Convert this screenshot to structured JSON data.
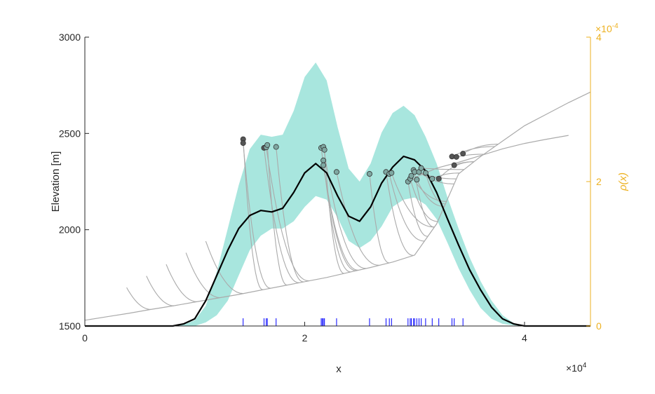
{
  "chart_data": {
    "type": "line",
    "title": "",
    "xlabel": "x",
    "ylabel_left": "Elevation [m]",
    "ylabel_right": "ρ(x)",
    "x_exponent_label": "×10",
    "x_exponent_power": "4",
    "right_exponent_label": "×10",
    "right_exponent_power": "-4",
    "xlim": [
      0,
      46000
    ],
    "ylim_left": [
      1500,
      3000
    ],
    "ylim_right": [
      0,
      0.0004
    ],
    "x_ticks": [
      {
        "v": 0,
        "label": "0"
      },
      {
        "v": 20000,
        "label": "2"
      },
      {
        "v": 40000,
        "label": "4"
      }
    ],
    "y_left_ticks": [
      {
        "v": 1500,
        "label": "1500"
      },
      {
        "v": 2000,
        "label": "2000"
      },
      {
        "v": 2500,
        "label": "2500"
      },
      {
        "v": 3000,
        "label": "3000"
      }
    ],
    "y_right_ticks": [
      {
        "v": 0,
        "label": "0"
      },
      {
        "v": 0.0002,
        "label": "2"
      },
      {
        "v": 0.0004,
        "label": "4"
      }
    ],
    "grid": false,
    "colors": {
      "axis_left": "#262626",
      "axis_right": "#EDB120",
      "band": "#A8E6DE",
      "density": "#000000",
      "streams": "#AAAAAA",
      "rug": "#0000FF",
      "points_light": "#7FA8A2",
      "points_dark": "#555555"
    },
    "density_curve": {
      "x": [
        0,
        8000,
        9000,
        10000,
        11000,
        12000,
        13000,
        14000,
        15000,
        16000,
        17000,
        18000,
        19000,
        20000,
        21000,
        22000,
        23000,
        24000,
        25000,
        26000,
        27000,
        28000,
        29000,
        30000,
        31000,
        32000,
        33000,
        34000,
        35000,
        36000,
        37000,
        38000,
        39000,
        40000,
        46000
      ],
      "y": [
        0,
        0,
        3e-06,
        1e-05,
        3.5e-05,
        7e-05,
        0.000105,
        0.000135,
        0.000153,
        0.00016,
        0.000158,
        0.000163,
        0.000185,
        0.000212,
        0.000225,
        0.000212,
        0.00018,
        0.000152,
        0.000145,
        0.000165,
        0.000198,
        0.00022,
        0.000235,
        0.00023,
        0.000215,
        0.000185,
        0.000148,
        0.000112,
        7.8e-05,
        5e-05,
        2.6e-05,
        1e-05,
        3e-06,
        0,
        0
      ]
    },
    "confidence_band": {
      "x": [
        8000,
        9000,
        10000,
        11000,
        12000,
        13000,
        14000,
        15000,
        16000,
        17000,
        18000,
        19000,
        20000,
        21000,
        22000,
        23000,
        24000,
        25000,
        26000,
        27000,
        28000,
        29000,
        30000,
        31000,
        32000,
        33000,
        34000,
        35000,
        36000,
        37000,
        38000,
        39000,
        40000
      ],
      "lower": [
        0,
        0,
        0,
        5e-06,
        1.5e-05,
        3.5e-05,
        7e-05,
        0.000105,
        0.000125,
        0.000135,
        0.000135,
        0.000145,
        0.000165,
        0.00018,
        0.000175,
        0.00015,
        0.000118,
        0.000108,
        0.000118,
        0.000138,
        0.000165,
        0.000175,
        0.000178,
        0.000168,
        0.000148,
        0.000115,
        8e-05,
        5e-05,
        2.5e-05,
        1e-05,
        3e-06,
        1e-06,
        0
      ],
      "upper": [
        0,
        2e-06,
        8e-06,
        2.8e-05,
        7.5e-05,
        0.000135,
        0.000195,
        0.000245,
        0.000265,
        0.000262,
        0.000265,
        0.000298,
        0.000345,
        0.000365,
        0.00034,
        0.000275,
        0.000218,
        0.0002,
        0.000225,
        0.000268,
        0.000295,
        0.000305,
        0.000292,
        0.000262,
        0.000225,
        0.000178,
        0.000135,
        9.5e-05,
        6.2e-05,
        3.5e-05,
        1.5e-05,
        4e-06,
        0
      ]
    },
    "main_stem": {
      "x": [
        0,
        2000,
        4000,
        6000,
        8000,
        10000,
        12000,
        14000,
        16000,
        18000,
        20000,
        22000,
        24000,
        26000,
        28000,
        30000,
        32000,
        34000,
        36000,
        38000,
        40000,
        42000,
        44000,
        46000
      ],
      "y": [
        1530,
        1548,
        1566,
        1586,
        1604,
        1624,
        1644,
        1664,
        1686,
        1708,
        1730,
        1752,
        1778,
        1804,
        1832,
        1868,
        2030,
        2290,
        2380,
        2460,
        2540,
        2600,
        2660,
        2715
      ]
    },
    "upper_branch": {
      "x": [
        30000,
        32000,
        34000,
        36000,
        38000,
        40000,
        42000,
        44000
      ],
      "y": [
        2270,
        2320,
        2350,
        2385,
        2420,
        2448,
        2470,
        2490
      ]
    },
    "rug_x": [
      14400,
      16300,
      16500,
      16600,
      17400,
      21500,
      21600,
      21700,
      21800,
      22900,
      25900,
      27400,
      27700,
      27900,
      29400,
      29600,
      29700,
      29900,
      30000,
      30200,
      30400,
      30600,
      31000,
      31600,
      32200,
      33400,
      33600,
      34400
    ],
    "outlets": [
      {
        "x": 14400,
        "y": 2470,
        "dark": true
      },
      {
        "x": 14400,
        "y": 2450,
        "dark": true
      },
      {
        "x": 16300,
        "y": 2425,
        "dark": true
      },
      {
        "x": 16500,
        "y": 2428,
        "dark": false
      },
      {
        "x": 16600,
        "y": 2440,
        "dark": false
      },
      {
        "x": 17400,
        "y": 2430,
        "dark": false
      },
      {
        "x": 21500,
        "y": 2425,
        "dark": false
      },
      {
        "x": 21700,
        "y": 2430,
        "dark": false
      },
      {
        "x": 21800,
        "y": 2415,
        "dark": false
      },
      {
        "x": 21700,
        "y": 2360,
        "dark": false
      },
      {
        "x": 21700,
        "y": 2335,
        "dark": false
      },
      {
        "x": 22900,
        "y": 2300,
        "dark": false
      },
      {
        "x": 25900,
        "y": 2290,
        "dark": false
      },
      {
        "x": 27400,
        "y": 2300,
        "dark": false
      },
      {
        "x": 27700,
        "y": 2290,
        "dark": false
      },
      {
        "x": 27900,
        "y": 2295,
        "dark": false
      },
      {
        "x": 29400,
        "y": 2250,
        "dark": false
      },
      {
        "x": 29600,
        "y": 2265,
        "dark": false
      },
      {
        "x": 29700,
        "y": 2280,
        "dark": false
      },
      {
        "x": 29900,
        "y": 2310,
        "dark": false
      },
      {
        "x": 30000,
        "y": 2300,
        "dark": false
      },
      {
        "x": 30200,
        "y": 2260,
        "dark": false
      },
      {
        "x": 30400,
        "y": 2300,
        "dark": false
      },
      {
        "x": 30600,
        "y": 2320,
        "dark": false
      },
      {
        "x": 31000,
        "y": 2295,
        "dark": false
      },
      {
        "x": 31600,
        "y": 2265,
        "dark": false
      },
      {
        "x": 32200,
        "y": 2265,
        "dark": true
      },
      {
        "x": 33400,
        "y": 2380,
        "dark": true
      },
      {
        "x": 33600,
        "y": 2335,
        "dark": true
      },
      {
        "x": 33800,
        "y": 2378,
        "dark": true
      },
      {
        "x": 34400,
        "y": 2395,
        "dark": true
      }
    ]
  }
}
